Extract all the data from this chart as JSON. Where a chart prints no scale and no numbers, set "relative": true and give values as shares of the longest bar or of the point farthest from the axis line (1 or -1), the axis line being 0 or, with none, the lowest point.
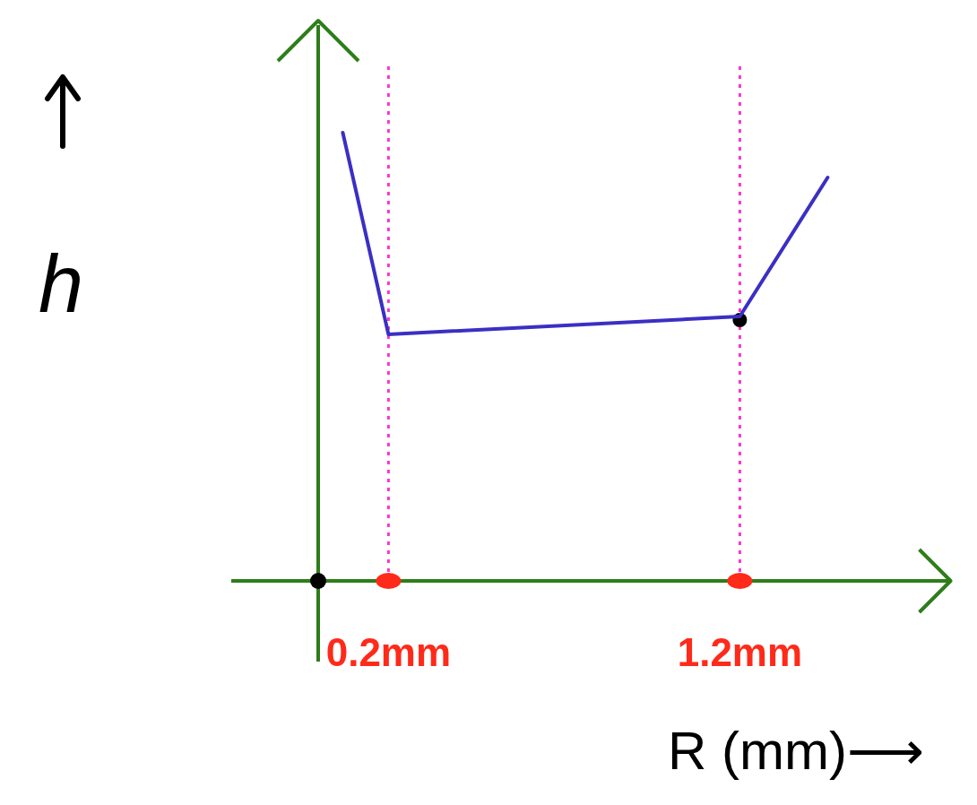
{
  "chart_data": {
    "type": "line",
    "xlabel": "R (mm)⟶",
    "ylabel": "h",
    "relative": true,
    "x": [
      0.07,
      0.2,
      1.2,
      1.45
    ],
    "series": [
      {
        "color": "#3b2fc4",
        "values": [
          1,
          0.55,
          0.59,
          0.9
        ]
      }
    ],
    "xlim": [
      0,
      1.8
    ],
    "xticks": [
      {
        "value": 0.2,
        "label": "0.2mm"
      },
      {
        "value": 1.2,
        "label": "1.2mm"
      }
    ],
    "ref_lines": [
      {
        "axis": "x",
        "value": 0.2,
        "color": "#ff33cc",
        "line_style": "dotted"
      },
      {
        "axis": "x",
        "value": 1.2,
        "color": "#ff33cc",
        "line_style": "dotted"
      }
    ],
    "grid": false
  }
}
